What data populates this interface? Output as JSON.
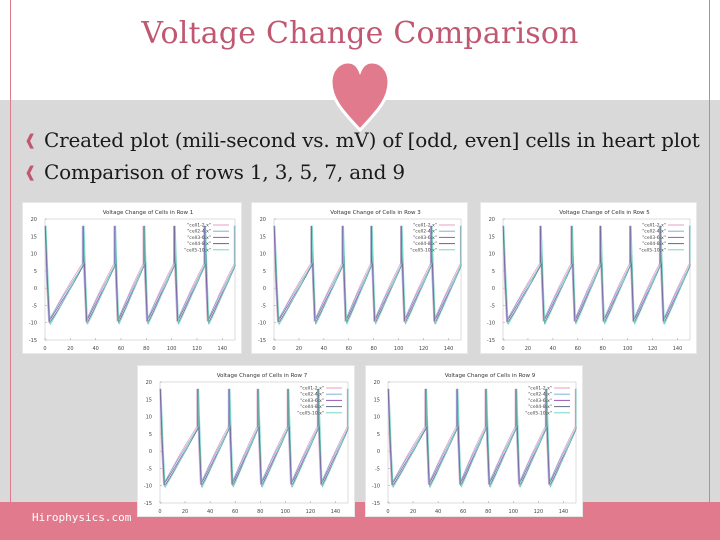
{
  "slide": {
    "title": "Voltage Change Comparison",
    "bullets": [
      "Created plot (mili-second vs. mV) of [odd, even] cells in heart plot",
      "Comparison of rows 1, 3, 5, 7, and 9"
    ],
    "footer": "Hirophysics.com"
  },
  "colors": {
    "accent": "#e07a8c",
    "title": "#c05872",
    "background": "#d9d9d9"
  },
  "icons": {
    "bullet": "bullet-icon",
    "heart": "heart-icon"
  },
  "chart_data": [
    {
      "type": "line",
      "title": "Voltage Change of Cells in Row 1",
      "xlim": [
        0,
        150
      ],
      "ylim": [
        -15,
        20
      ],
      "x_ticks": [
        0,
        20,
        40,
        60,
        80,
        100,
        120,
        140
      ],
      "y_ticks": [
        -15,
        -10,
        -5,
        0,
        5,
        10,
        15,
        20
      ],
      "spike_times": [
        0,
        30,
        55,
        78,
        102,
        126,
        150
      ],
      "series": [
        {
          "name": "\"cell1-2.x\"",
          "color": "#e6a0c4"
        },
        {
          "name": "\"cell2-4.x\"",
          "color": "#7fb3d5"
        },
        {
          "name": "\"cell3-6.x\"",
          "color": "#9b59b6"
        },
        {
          "name": "\"cell4-8.x\"",
          "color": "#5d6d7e"
        },
        {
          "name": "\"cell5-10.x\"",
          "color": "#76d7c4"
        }
      ]
    },
    {
      "type": "line",
      "title": "Voltage Change of Cells in Row 3",
      "xlim": [
        0,
        150
      ],
      "ylim": [
        -15,
        20
      ],
      "x_ticks": [
        0,
        20,
        40,
        60,
        80,
        100,
        120,
        140
      ],
      "y_ticks": [
        -15,
        -10,
        -5,
        0,
        5,
        10,
        15,
        20
      ],
      "spike_times": [
        0,
        30,
        55,
        78,
        102,
        126,
        150
      ],
      "series": [
        {
          "name": "\"cell1-2.x\"",
          "color": "#e6a0c4"
        },
        {
          "name": "\"cell2-4.x\"",
          "color": "#7fb3d5"
        },
        {
          "name": "\"cell3-6.x\"",
          "color": "#9b59b6"
        },
        {
          "name": "\"cell4-8.x\"",
          "color": "#5d6d7e"
        },
        {
          "name": "\"cell5-10.x\"",
          "color": "#76d7c4"
        }
      ]
    },
    {
      "type": "line",
      "title": "Voltage Change of Cells in Row 5",
      "xlim": [
        0,
        150
      ],
      "ylim": [
        -15,
        20
      ],
      "x_ticks": [
        0,
        20,
        40,
        60,
        80,
        100,
        120,
        140
      ],
      "y_ticks": [
        -15,
        -10,
        -5,
        0,
        5,
        10,
        15,
        20
      ],
      "spike_times": [
        0,
        30,
        55,
        78,
        102,
        126,
        150
      ],
      "series": [
        {
          "name": "\"cell1-2.x\"",
          "color": "#e6a0c4"
        },
        {
          "name": "\"cell2-4.x\"",
          "color": "#7fb3d5"
        },
        {
          "name": "\"cell3-6.x\"",
          "color": "#9b59b6"
        },
        {
          "name": "\"cell4-8.x\"",
          "color": "#5d6d7e"
        },
        {
          "name": "\"cell5-10.x\"",
          "color": "#76d7c4"
        }
      ]
    },
    {
      "type": "line",
      "title": "Voltage Change of Cells in Row 7",
      "xlim": [
        0,
        150
      ],
      "ylim": [
        -15,
        20
      ],
      "x_ticks": [
        0,
        20,
        40,
        60,
        80,
        100,
        120,
        140
      ],
      "y_ticks": [
        -15,
        -10,
        -5,
        0,
        5,
        10,
        15,
        20
      ],
      "spike_times": [
        0,
        30,
        55,
        78,
        102,
        126,
        150
      ],
      "series": [
        {
          "name": "\"cell1-2.x\"",
          "color": "#e6a0c4"
        },
        {
          "name": "\"cell2-4.x\"",
          "color": "#7fb3d5"
        },
        {
          "name": "\"cell3-6.x\"",
          "color": "#9b59b6"
        },
        {
          "name": "\"cell4-8.x\"",
          "color": "#5d6d7e"
        },
        {
          "name": "\"cell5-10.x\"",
          "color": "#76d7c4"
        }
      ]
    },
    {
      "type": "line",
      "title": "Voltage Change of Cells in Row 9",
      "xlim": [
        0,
        150
      ],
      "ylim": [
        -15,
        20
      ],
      "x_ticks": [
        0,
        20,
        40,
        60,
        80,
        100,
        120,
        140
      ],
      "y_ticks": [
        -15,
        -10,
        -5,
        0,
        5,
        10,
        15,
        20
      ],
      "spike_times": [
        0,
        30,
        55,
        78,
        102,
        126,
        150
      ],
      "series": [
        {
          "name": "\"cell1-2.x\"",
          "color": "#e6a0c4"
        },
        {
          "name": "\"cell2-4.x\"",
          "color": "#7fb3d5"
        },
        {
          "name": "\"cell3-6.x\"",
          "color": "#9b59b6"
        },
        {
          "name": "\"cell4-8.x\"",
          "color": "#5d6d7e"
        },
        {
          "name": "\"cell5-10.x\"",
          "color": "#76d7c4"
        }
      ]
    }
  ]
}
